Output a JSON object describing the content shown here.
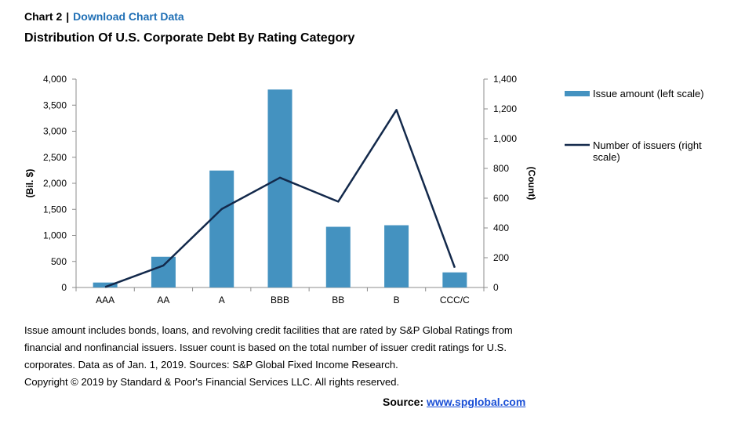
{
  "header": {
    "chart_label": "Chart 2",
    "separator": "|",
    "download_link": "Download Chart Data"
  },
  "title": "Distribution Of U.S. Corporate Debt By Rating Category",
  "chart_data": {
    "type": "bar",
    "categories": [
      "AAA",
      "AA",
      "A",
      "BBB",
      "BB",
      "B",
      "CCC/C"
    ],
    "series": [
      {
        "name": "Issue amount (left scale)",
        "type": "bar",
        "axis": "left",
        "color": "#4492c0",
        "values": [
          95,
          590,
          2245,
          3800,
          1165,
          1195,
          290
        ]
      },
      {
        "name": "Number of issuers (right scale)",
        "type": "line",
        "axis": "right",
        "color": "#13294b",
        "values": [
          3,
          148,
          527,
          738,
          577,
          1193,
          133
        ]
      }
    ],
    "ylabel": "(Bil. $)",
    "y2label": "(Count)",
    "ylim": [
      0,
      4000
    ],
    "y2lim": [
      0,
      1400
    ],
    "yticks": [
      "0",
      "500",
      "1,000",
      "1,500",
      "2,000",
      "2,500",
      "3,000",
      "3,500",
      "4,000"
    ],
    "y2ticks": [
      "0",
      "200",
      "400",
      "600",
      "800",
      "1,000",
      "1,200",
      "1,400"
    ],
    "grid": false,
    "legend_position": "right"
  },
  "notes": [
    "Issue amount includes bonds, loans, and revolving credit facilities that are rated by S&P Global Ratings from",
    "financial and nonfinancial issuers. Issuer count is based on the total number of issuer credit ratings for U.S.",
    "corporates. Data as of Jan. 1, 2019. Sources: S&P Global Fixed Income Research.",
    "Copyright © 2019 by Standard & Poor's Financial Services LLC. All rights reserved."
  ],
  "source": {
    "label": "Source:",
    "link": "www.spglobal.com"
  }
}
